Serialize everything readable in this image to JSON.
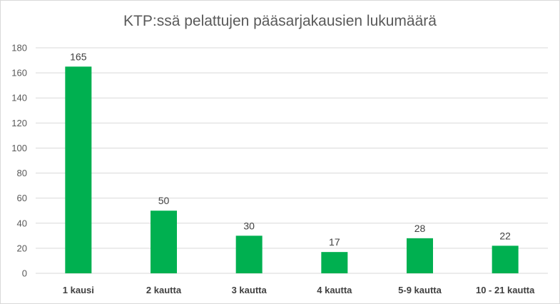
{
  "chart_data": {
    "type": "bar",
    "title": "KTP:ssä pelattujen pääsarjakausien lukumäärä",
    "categories": [
      "1 kausi",
      "2 kautta",
      "3 kautta",
      "4 kautta",
      "5-9 kautta",
      "10 - 21 kautta"
    ],
    "values": [
      165,
      50,
      30,
      17,
      28,
      22
    ],
    "xlabel": "",
    "ylabel": "",
    "ylim": [
      0,
      180
    ],
    "yticks": [
      0,
      20,
      40,
      60,
      80,
      100,
      120,
      140,
      160,
      180
    ],
    "grid": true,
    "legend": "none",
    "bar_color": "#00b050",
    "grid_color": "#d9d9d9"
  }
}
